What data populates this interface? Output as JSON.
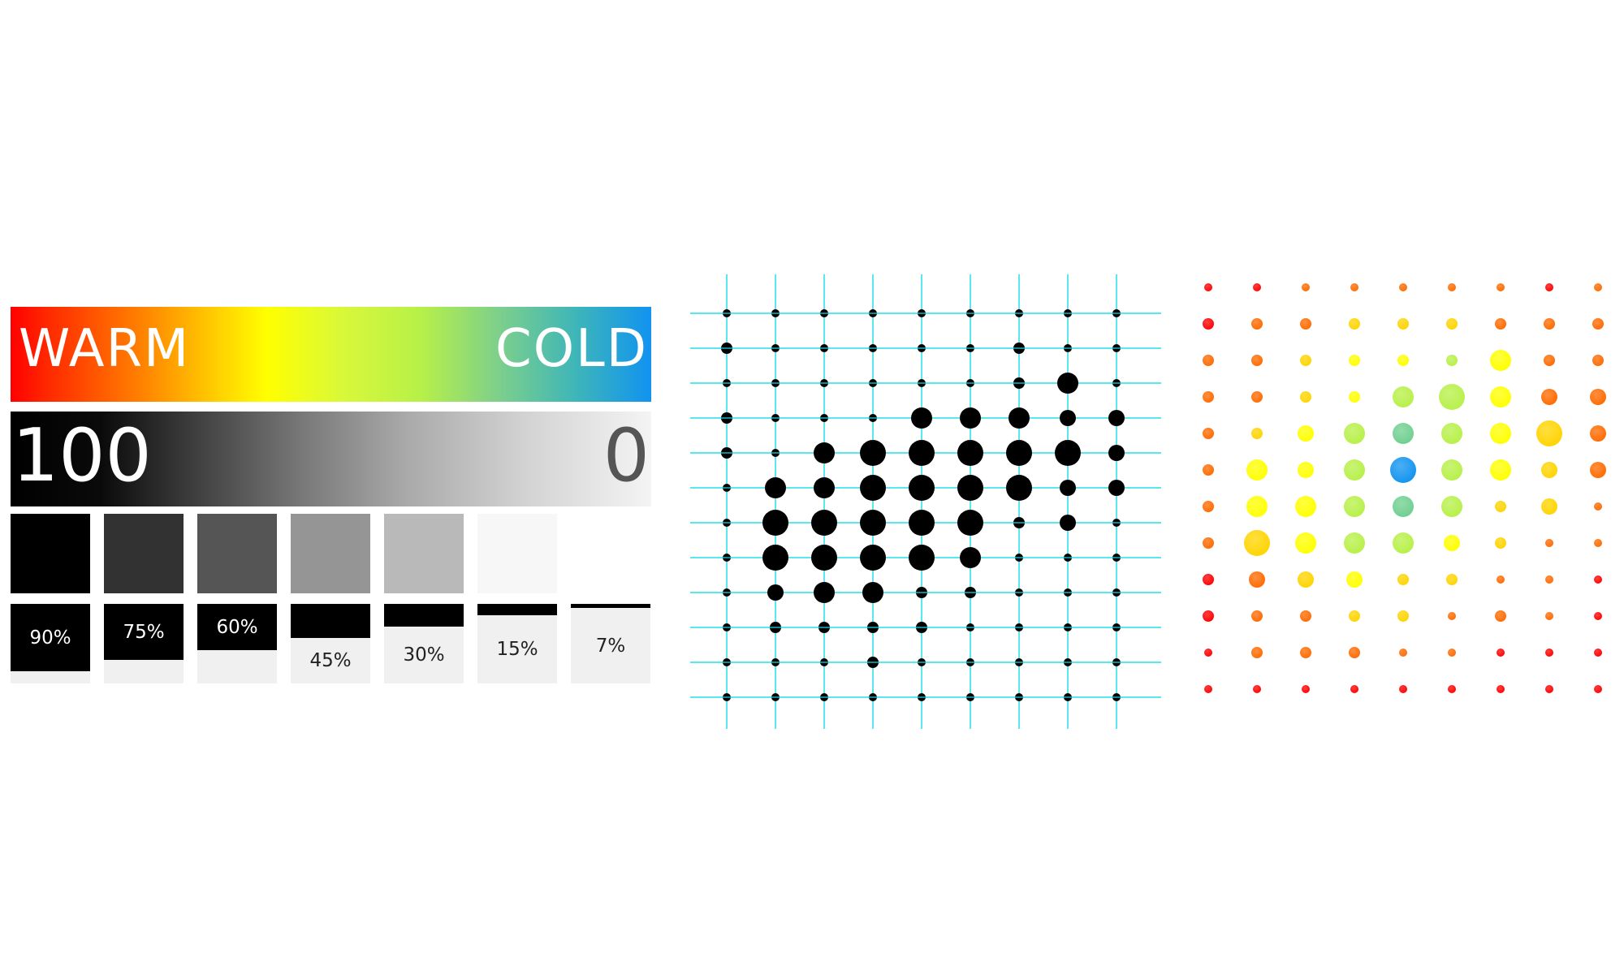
{
  "legend": {
    "warm_label": "WARM",
    "cold_label": "COLD",
    "max_value": "100",
    "min_value": "0"
  },
  "swatches": [
    {
      "color": "#000000"
    },
    {
      "color": "#323232"
    },
    {
      "color": "#555555"
    },
    {
      "color": "#959595"
    },
    {
      "color": "#b9b9b9"
    },
    {
      "color": "#f7f7f7"
    },
    {
      "color": "#ffffff"
    }
  ],
  "fills": [
    {
      "label": "90%",
      "level": 0.85
    },
    {
      "label": "75%",
      "level": 0.7
    },
    {
      "label": "60%",
      "level": 0.58
    },
    {
      "label": "45%",
      "level": 0.43
    },
    {
      "label": "30%",
      "level": 0.29
    },
    {
      "label": "15%",
      "level": 0.14
    },
    {
      "label": "7%",
      "level": 0.05
    }
  ],
  "dot_grid": {
    "grid_color": "#22e0e8",
    "dot_color": "#000000",
    "size_levels": [
      [
        1,
        1,
        1,
        1,
        1,
        1,
        1,
        1,
        1
      ],
      [
        2,
        1,
        1,
        1,
        1,
        1,
        2,
        1,
        1
      ],
      [
        1,
        1,
        1,
        1,
        1,
        1,
        2,
        4,
        1
      ],
      [
        2,
        1,
        1,
        1,
        4,
        4,
        4,
        3,
        3
      ],
      [
        2,
        1,
        4,
        5,
        5,
        5,
        5,
        5,
        3
      ],
      [
        1,
        4,
        4,
        5,
        5,
        5,
        5,
        3,
        3
      ],
      [
        1,
        5,
        5,
        5,
        5,
        5,
        2,
        3,
        1
      ],
      [
        1,
        5,
        5,
        5,
        5,
        4,
        1,
        1,
        1
      ],
      [
        1,
        3,
        4,
        4,
        2,
        2,
        1,
        1,
        1
      ],
      [
        1,
        2,
        2,
        2,
        2,
        1,
        1,
        1,
        1
      ],
      [
        1,
        1,
        1,
        2,
        1,
        1,
        1,
        1,
        1
      ],
      [
        1,
        1,
        1,
        1,
        1,
        1,
        1,
        1,
        1
      ]
    ]
  },
  "color_dot_grid": {
    "color_stops": [
      "#ff0000",
      "#ff6a00",
      "#ffd400",
      "#ffff00",
      "#b7f048",
      "#6fcf8f",
      "#1193f0"
    ],
    "size_levels": [
      [
        1,
        1,
        1,
        1,
        1,
        1,
        1,
        1,
        1
      ],
      [
        2,
        2,
        2,
        2,
        2,
        2,
        2,
        2,
        2
      ],
      [
        2,
        2,
        2,
        2,
        2,
        2,
        4,
        2,
        2
      ],
      [
        2,
        2,
        2,
        2,
        4,
        5,
        4,
        3,
        3
      ],
      [
        2,
        2,
        3,
        4,
        4,
        4,
        4,
        5,
        3
      ],
      [
        2,
        4,
        3,
        4,
        5,
        4,
        4,
        3,
        3
      ],
      [
        2,
        4,
        4,
        4,
        4,
        4,
        2,
        3,
        1
      ],
      [
        2,
        5,
        4,
        4,
        4,
        3,
        2,
        1,
        1
      ],
      [
        2,
        3,
        3,
        3,
        2,
        2,
        1,
        1,
        1
      ],
      [
        2,
        2,
        2,
        2,
        2,
        1,
        2,
        1,
        1
      ],
      [
        1,
        2,
        2,
        2,
        1,
        1,
        1,
        1,
        1
      ],
      [
        1,
        1,
        1,
        1,
        1,
        1,
        1,
        1,
        1
      ]
    ],
    "color_levels": [
      [
        0,
        0,
        1,
        1,
        1,
        1,
        1,
        0,
        1
      ],
      [
        0,
        1,
        1,
        2,
        2,
        2,
        1,
        1,
        1
      ],
      [
        1,
        1,
        2,
        3,
        3,
        4,
        3,
        1,
        1
      ],
      [
        1,
        1,
        2,
        3,
        4,
        4,
        3,
        1,
        1
      ],
      [
        1,
        2,
        3,
        4,
        5,
        4,
        3,
        2,
        1
      ],
      [
        1,
        3,
        3,
        4,
        6,
        4,
        3,
        2,
        1
      ],
      [
        1,
        3,
        3,
        4,
        5,
        4,
        2,
        2,
        1
      ],
      [
        1,
        2,
        3,
        4,
        4,
        3,
        2,
        1,
        1
      ],
      [
        0,
        1,
        2,
        3,
        2,
        2,
        1,
        1,
        0
      ],
      [
        0,
        1,
        1,
        2,
        2,
        1,
        1,
        1,
        0
      ],
      [
        0,
        1,
        1,
        1,
        1,
        1,
        0,
        0,
        0
      ],
      [
        0,
        0,
        0,
        0,
        0,
        0,
        0,
        0,
        0
      ]
    ]
  }
}
